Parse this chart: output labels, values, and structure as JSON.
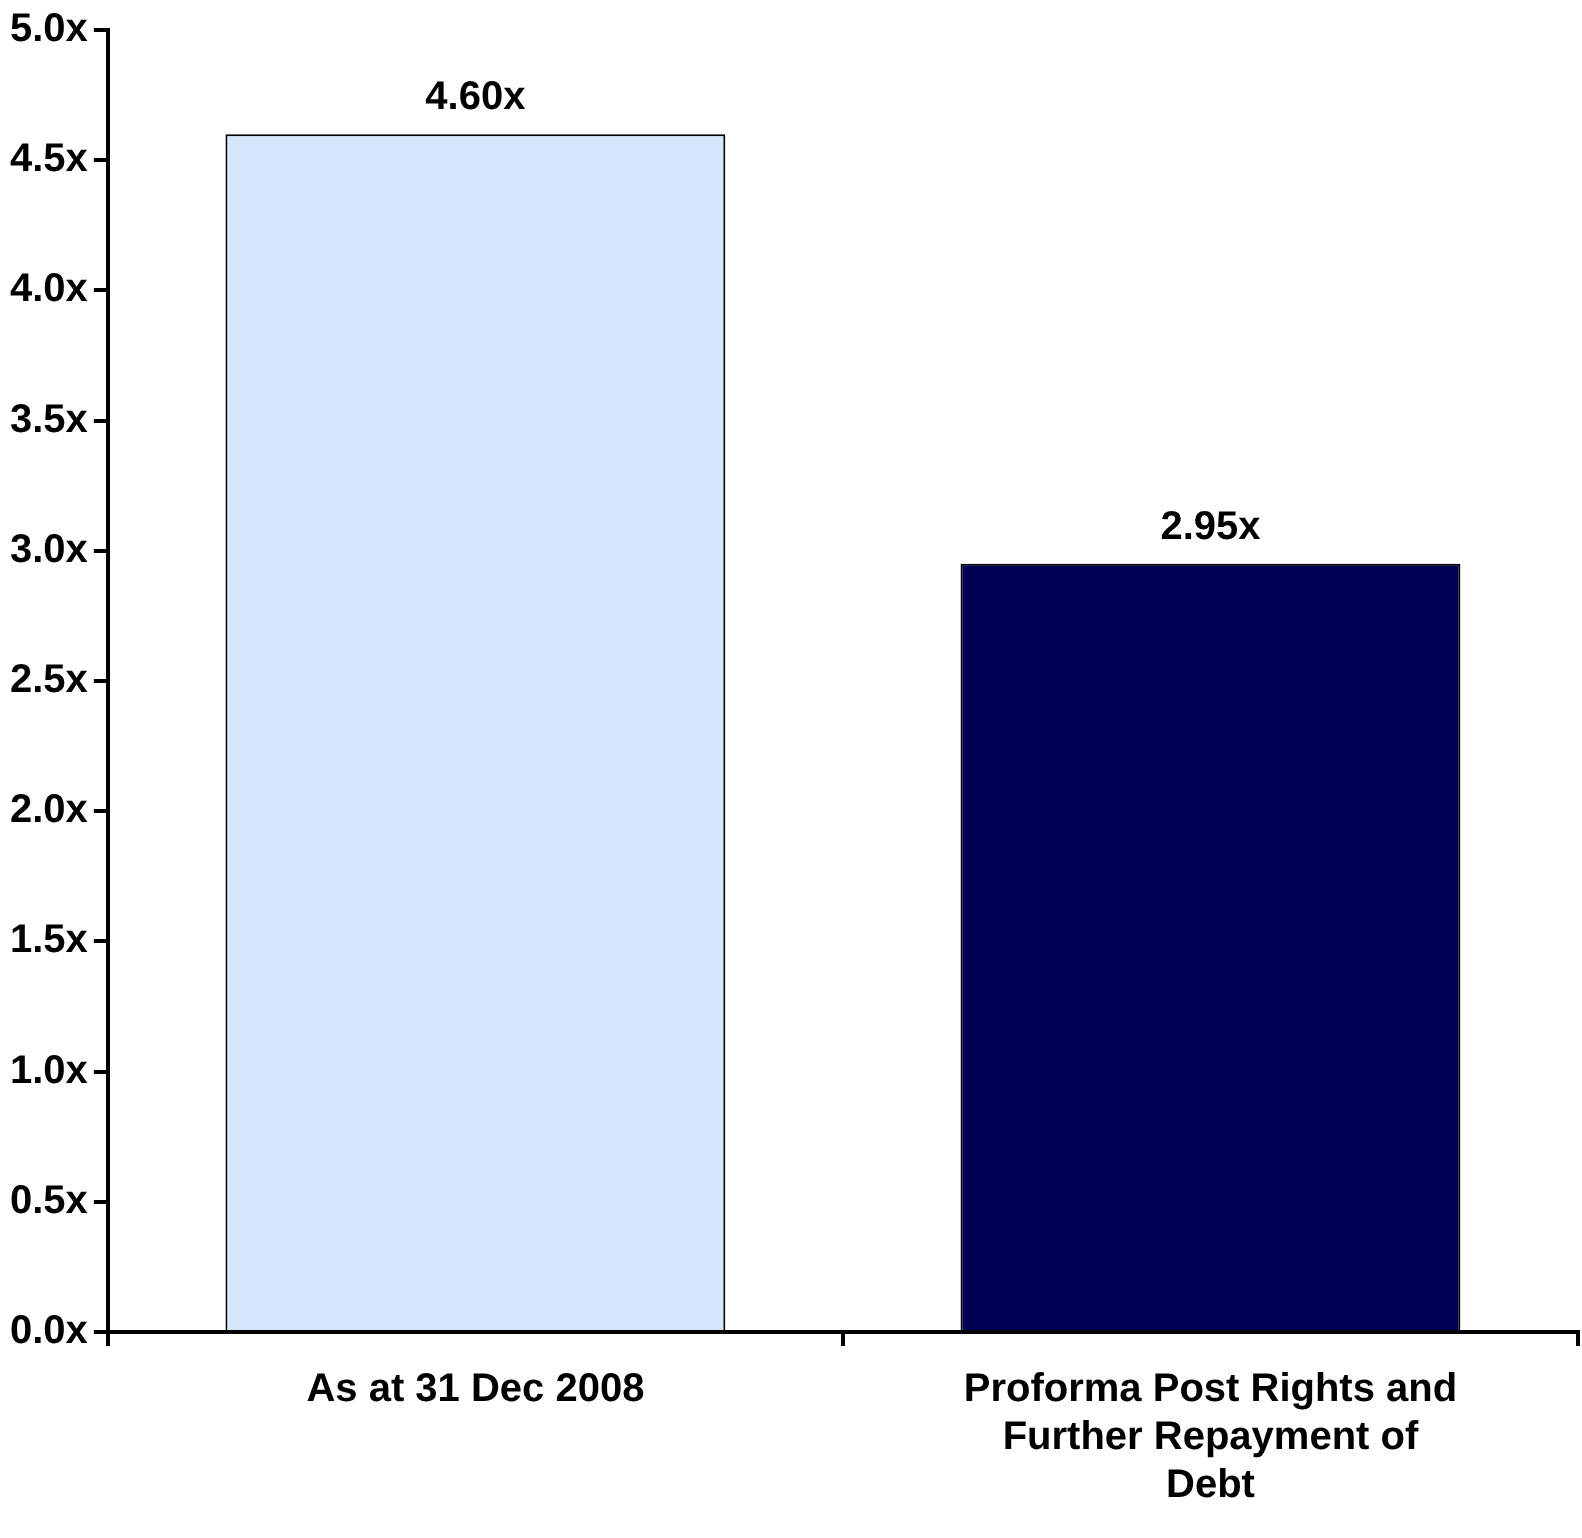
{
  "chart_data": {
    "type": "bar",
    "categories": [
      "As at 31 Dec 2008",
      "Proforma Post Rights and Further Repayment of Debt"
    ],
    "values": [
      4.6,
      2.95
    ],
    "colors": [
      "#d4e6fa",
      "#000055"
    ],
    "value_labels": [
      "4.60x",
      "2.95x"
    ],
    "ylim": [
      0,
      5
    ],
    "yticks": [
      {
        "value": 0,
        "label": "0.0x"
      },
      {
        "value": 0.5,
        "label": "0.5x"
      },
      {
        "value": 1,
        "label": "1.0x"
      },
      {
        "value": 1.5,
        "label": "1.5x"
      },
      {
        "value": 2,
        "label": "2.0x"
      },
      {
        "value": 2.5,
        "label": "2.5x"
      },
      {
        "value": 3,
        "label": "3.0x"
      },
      {
        "value": 3.5,
        "label": "3.5x"
      },
      {
        "value": 4,
        "label": "4.0x"
      },
      {
        "value": 4.5,
        "label": "4.5x"
      },
      {
        "value": 5,
        "label": "5.0x"
      }
    ]
  }
}
